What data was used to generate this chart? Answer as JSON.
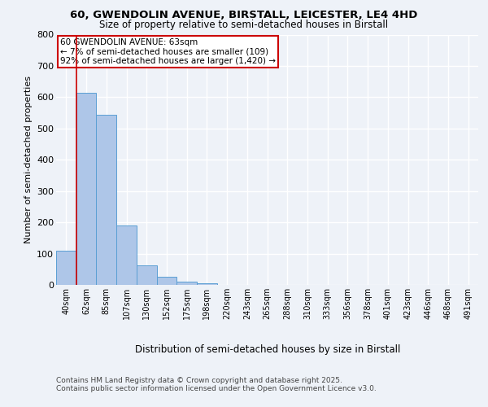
{
  "title_line1": "60, GWENDOLIN AVENUE, BIRSTALL, LEICESTER, LE4 4HD",
  "title_line2": "Size of property relative to semi-detached houses in Birstall",
  "xlabel": "Distribution of semi-detached houses by size in Birstall",
  "ylabel": "Number of semi-detached properties",
  "categories": [
    "40sqm",
    "62sqm",
    "85sqm",
    "107sqm",
    "130sqm",
    "152sqm",
    "175sqm",
    "198sqm",
    "220sqm",
    "243sqm",
    "265sqm",
    "288sqm",
    "310sqm",
    "333sqm",
    "356sqm",
    "378sqm",
    "401sqm",
    "423sqm",
    "446sqm",
    "468sqm",
    "491sqm"
  ],
  "values": [
    109,
    614,
    543,
    190,
    62,
    25,
    10,
    5,
    0,
    0,
    0,
    0,
    0,
    0,
    0,
    0,
    0,
    0,
    0,
    0,
    0
  ],
  "bar_color": "#aec6e8",
  "bar_edge_color": "#5a9fd4",
  "vline_color": "#cc0000",
  "annotation_title": "60 GWENDOLIN AVENUE: 63sqm",
  "annotation_line2": "← 7% of semi-detached houses are smaller (109)",
  "annotation_line3": "92% of semi-detached houses are larger (1,420) →",
  "annotation_box_color": "#cc0000",
  "ylim": [
    0,
    800
  ],
  "yticks": [
    0,
    100,
    200,
    300,
    400,
    500,
    600,
    700,
    800
  ],
  "footer_line1": "Contains HM Land Registry data © Crown copyright and database right 2025.",
  "footer_line2": "Contains public sector information licensed under the Open Government Licence v3.0.",
  "bg_color": "#eef2f8",
  "plot_bg_color": "#eef2f8",
  "grid_color": "#ffffff"
}
